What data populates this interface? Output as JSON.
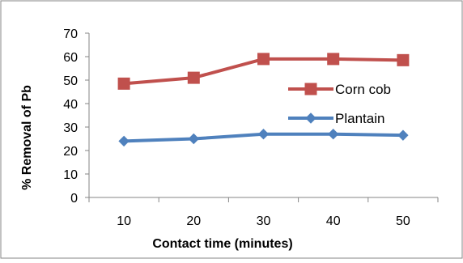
{
  "chart_data": {
    "type": "line",
    "title": "",
    "xlabel": "Contact time (minutes)",
    "ylabel": "% Removal of Pb",
    "categories": [
      "10",
      "20",
      "30",
      "40",
      "50"
    ],
    "ylim": [
      0,
      70
    ],
    "yticks": [
      "0",
      "10",
      "20",
      "30",
      "40",
      "50",
      "60",
      "70"
    ],
    "grid": false,
    "legend_position": "right",
    "series": [
      {
        "name": "Corn cob",
        "values": [
          48.5,
          51,
          59,
          59,
          58.5
        ],
        "color": "#C0504D",
        "marker": "square"
      },
      {
        "name": "Plantain",
        "values": [
          24,
          25,
          27,
          27,
          26.5
        ],
        "color": "#4F81BD",
        "marker": "diamond"
      }
    ]
  }
}
